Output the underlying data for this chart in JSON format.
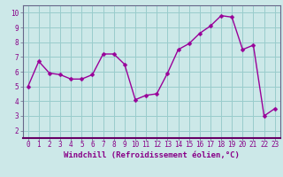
{
  "x": [
    0,
    1,
    2,
    3,
    4,
    5,
    6,
    7,
    8,
    9,
    10,
    11,
    12,
    13,
    14,
    15,
    16,
    17,
    18,
    19,
    20,
    21,
    22,
    23
  ],
  "y": [
    5.0,
    6.7,
    5.9,
    5.8,
    5.5,
    5.5,
    5.8,
    7.2,
    7.2,
    6.5,
    4.1,
    4.4,
    4.5,
    5.9,
    7.5,
    7.9,
    8.6,
    9.1,
    9.8,
    9.7,
    7.5,
    7.8,
    3.0,
    3.5
  ],
  "xlabel": "Windchill (Refroidissement éolien,°C)",
  "line_color": "#990099",
  "marker_color": "#990099",
  "bg_color": "#cce8e8",
  "grid_color": "#99cccc",
  "axis_bg": "#cce8e8",
  "xlim": [
    -0.5,
    23.5
  ],
  "ylim": [
    1.5,
    10.5
  ],
  "yticks": [
    2,
    3,
    4,
    5,
    6,
    7,
    8,
    9,
    10
  ],
  "xticks": [
    0,
    1,
    2,
    3,
    4,
    5,
    6,
    7,
    8,
    9,
    10,
    11,
    12,
    13,
    14,
    15,
    16,
    17,
    18,
    19,
    20,
    21,
    22,
    23
  ],
  "tick_label_size": 5.5,
  "xlabel_size": 6.5,
  "line_width": 1.0,
  "marker_size": 2.5,
  "text_color": "#880088"
}
